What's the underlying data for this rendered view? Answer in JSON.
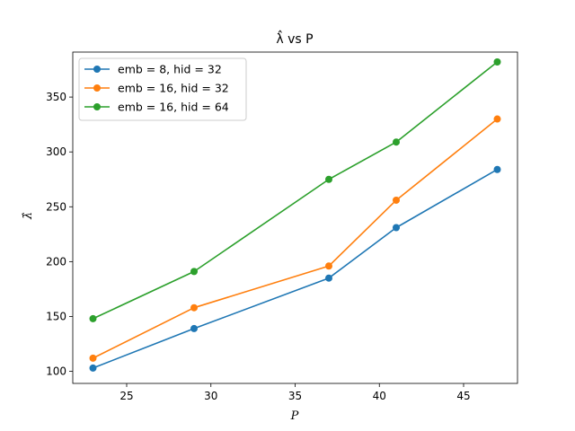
{
  "chart_data": {
    "type": "line",
    "title": "λ̂ vs P",
    "xlabel": "P",
    "ylabel": "λ̂",
    "x": [
      23,
      29,
      37,
      41,
      47
    ],
    "xlim": [
      21.8,
      48.2
    ],
    "ylim": [
      89,
      391
    ],
    "xticks": [
      25,
      30,
      35,
      40,
      45
    ],
    "yticks": [
      100,
      150,
      200,
      250,
      300,
      350
    ],
    "grid": false,
    "legend_position": "top-left",
    "series": [
      {
        "name": "emb = 8, hid = 32",
        "color": "#1f77b4",
        "values": [
          103,
          139,
          185,
          231,
          284
        ]
      },
      {
        "name": "emb = 16, hid = 32",
        "color": "#ff7f0e",
        "values": [
          112,
          158,
          196,
          256,
          330
        ]
      },
      {
        "name": "emb = 16, hid = 64",
        "color": "#2ca02c",
        "values": [
          148,
          191,
          275,
          309,
          382
        ]
      }
    ]
  }
}
